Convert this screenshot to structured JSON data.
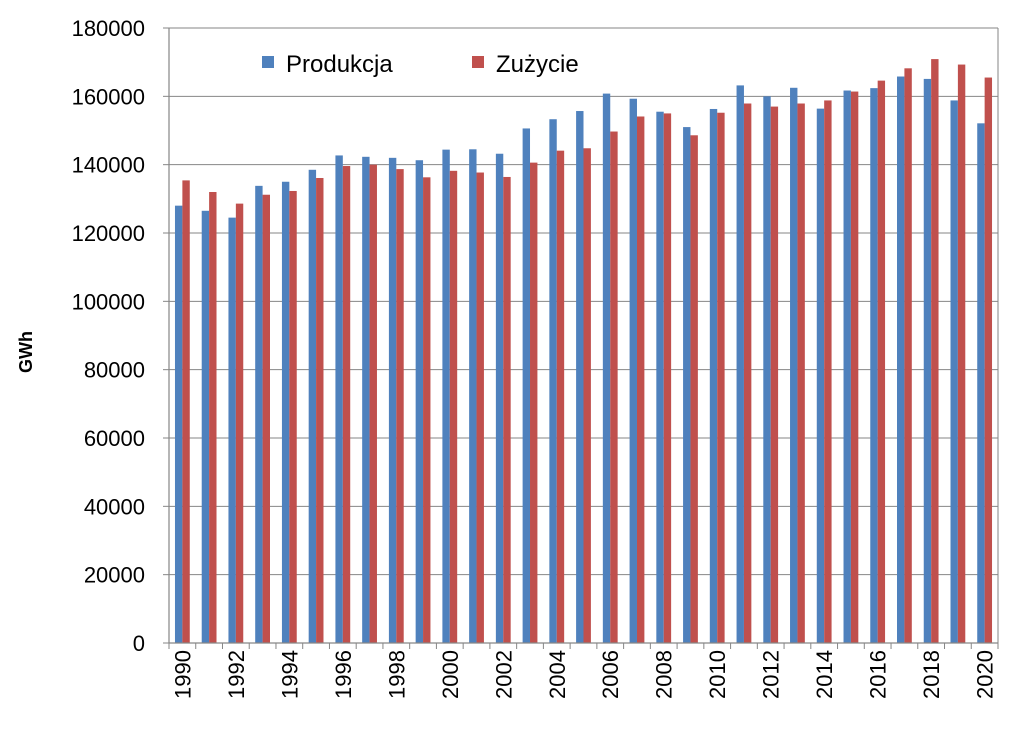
{
  "chart_data": {
    "type": "bar",
    "title": "",
    "xlabel": "",
    "ylabel": "GWh",
    "ylim": [
      0,
      180000
    ],
    "yticks": [
      0,
      20000,
      40000,
      60000,
      80000,
      100000,
      120000,
      140000,
      160000,
      180000
    ],
    "grid": true,
    "legend_position": "top-left",
    "categories": [
      1990,
      1991,
      1992,
      1993,
      1994,
      1995,
      1996,
      1997,
      1998,
      1999,
      2000,
      2001,
      2002,
      2003,
      2004,
      2005,
      2006,
      2007,
      2008,
      2009,
      2010,
      2011,
      2012,
      2013,
      2014,
      2015,
      2016,
      2017,
      2018,
      2019,
      2020
    ],
    "xtick_labels": [
      "1990",
      "1992",
      "1994",
      "1996",
      "1998",
      "2000",
      "2002",
      "2004",
      "2006",
      "2008",
      "2010",
      "2012",
      "2014",
      "2016",
      "2018",
      "2020"
    ],
    "series": [
      {
        "name": "Produkcja",
        "color": "#4F81BD",
        "values": [
          128000,
          126500,
          124500,
          133800,
          135000,
          138500,
          142700,
          142300,
          142000,
          141300,
          144400,
          144500,
          143200,
          150600,
          153300,
          155700,
          160800,
          159300,
          155500,
          151000,
          156300,
          163200,
          160000,
          162500,
          156400,
          161700,
          162400,
          165800,
          165100,
          158800,
          152100
        ]
      },
      {
        "name": "Zużycie",
        "color": "#C0504D",
        "values": [
          135400,
          132000,
          128600,
          131200,
          132300,
          136100,
          139600,
          140000,
          138700,
          136300,
          138200,
          137700,
          136400,
          140600,
          144100,
          144800,
          149700,
          154100,
          155000,
          148600,
          155200,
          157900,
          157000,
          157900,
          158800,
          161400,
          164600,
          168200,
          170900,
          169300,
          165500
        ]
      }
    ]
  }
}
